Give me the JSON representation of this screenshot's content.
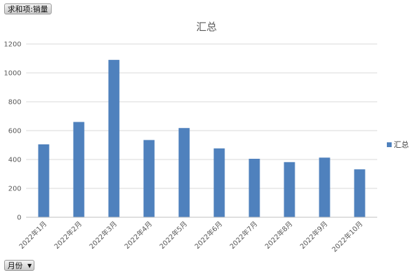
{
  "value_field_button": "求和项:销量",
  "axis_field_button": "月份",
  "axis_field_arrow": "▼",
  "chart_data": {
    "type": "bar",
    "title": "汇总",
    "xlabel": "",
    "ylabel": "",
    "categories": [
      "2022年1月",
      "2022年2月",
      "2022年3月",
      "2022年4月",
      "2022年5月",
      "2022年6月",
      "2022年7月",
      "2022年8月",
      "2022年9月",
      "2022年10月"
    ],
    "series": [
      {
        "name": "汇总",
        "color": "#4f81bd",
        "values": [
          505,
          660,
          1090,
          535,
          618,
          477,
          405,
          382,
          413,
          332
        ]
      }
    ],
    "ylim": [
      0,
      1200
    ],
    "yticks": [
      0,
      200,
      400,
      600,
      800,
      1000,
      1200
    ],
    "grid": true,
    "legend_position": "right"
  }
}
